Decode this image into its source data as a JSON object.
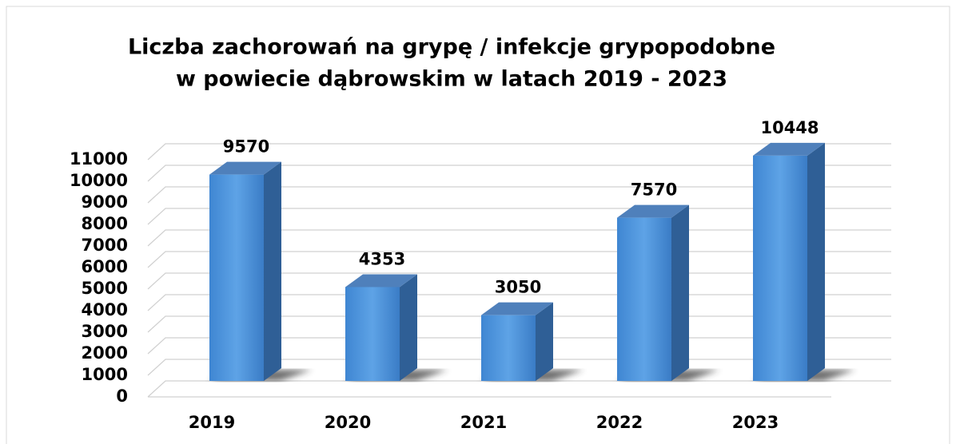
{
  "chart_data": {
    "type": "bar",
    "title": [
      "Liczba zachorowań na grypę / infekcje grypopodobne",
      "w powiecie dąbrowskim w latach 2019 - 2023"
    ],
    "categories": [
      "2019",
      "2020",
      "2021",
      "2022",
      "2023"
    ],
    "values": [
      9570,
      4353,
      3050,
      7570,
      10448
    ],
    "color": "#4a8fd8",
    "ylim": [
      0,
      11000
    ],
    "yticks": [
      0,
      1000,
      2000,
      3000,
      4000,
      5000,
      6000,
      7000,
      8000,
      9000,
      10000,
      11000
    ],
    "grid": true
  }
}
